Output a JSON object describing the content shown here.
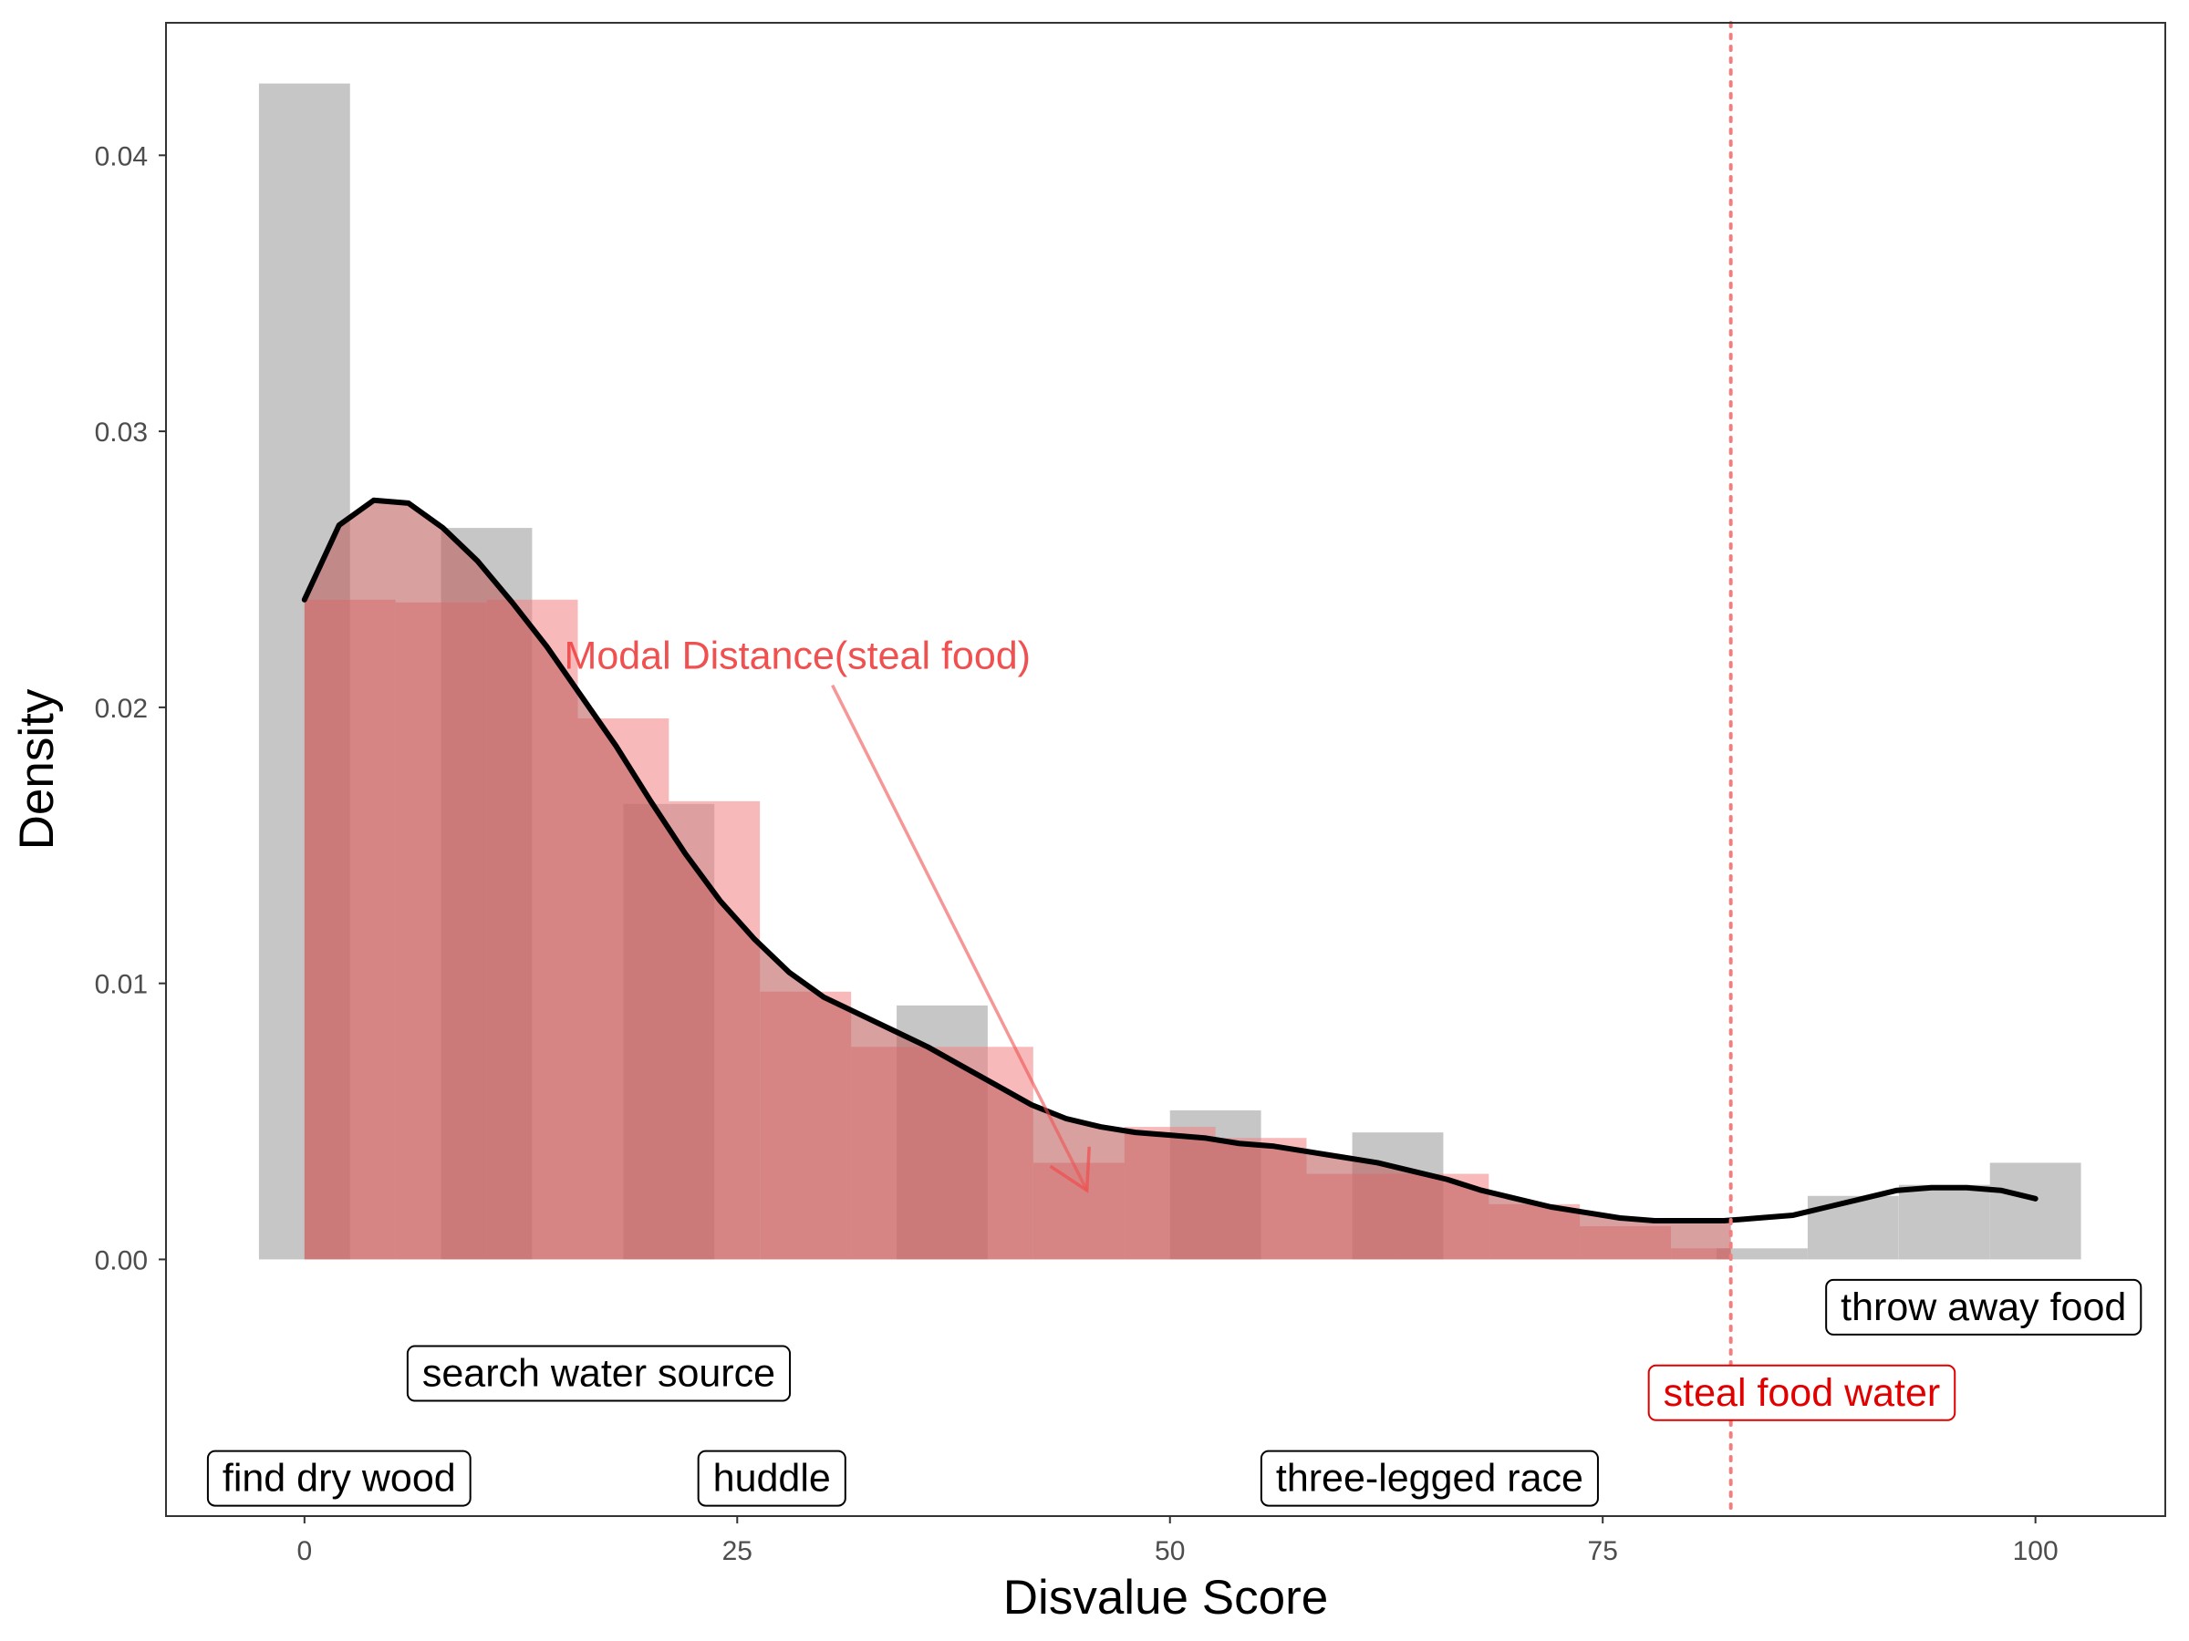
{
  "chart_data": {
    "type": "bar",
    "xlabel": "Disvalue Score",
    "ylabel": "Density",
    "xlim": [
      -8,
      107.5
    ],
    "ylim": [
      -0.0093,
      0.0448
    ],
    "grid": false,
    "x_ticks": [
      0,
      25,
      50,
      75,
      100
    ],
    "y_ticks": [
      0.0,
      0.01,
      0.02,
      0.03,
      0.04
    ],
    "x_tick_labels": [
      "0",
      "25",
      "50",
      "75",
      "100"
    ],
    "y_tick_labels": [
      "0.00",
      "0.01",
      "0.02",
      "0.03",
      "0.04"
    ],
    "gray_histogram": {
      "bin_width": 5.26,
      "color": "#c6c6c6",
      "bins": [
        {
          "x0": -2.63,
          "density": 0.0426
        },
        {
          "x0": 2.63,
          "density": 0.0
        },
        {
          "x0": 7.89,
          "density": 0.0265
        },
        {
          "x0": 13.16,
          "density": 0.0
        },
        {
          "x0": 18.42,
          "density": 0.0165
        },
        {
          "x0": 23.68,
          "density": 0.0
        },
        {
          "x0": 28.95,
          "density": 0.0
        },
        {
          "x0": 34.21,
          "density": 0.0092
        },
        {
          "x0": 39.47,
          "density": 0.0
        },
        {
          "x0": 44.74,
          "density": 0.0
        },
        {
          "x0": 50.0,
          "density": 0.0054
        },
        {
          "x0": 55.26,
          "density": 0.0
        },
        {
          "x0": 60.53,
          "density": 0.0046
        },
        {
          "x0": 65.79,
          "density": 0.0
        },
        {
          "x0": 71.05,
          "density": 0.0
        },
        {
          "x0": 76.32,
          "density": 0.0
        },
        {
          "x0": 81.58,
          "density": 0.0004
        },
        {
          "x0": 86.84,
          "density": 0.0023
        },
        {
          "x0": 92.11,
          "density": 0.0027
        },
        {
          "x0": 97.37,
          "density": 0.0035
        }
      ]
    },
    "red_histogram": {
      "bin_width": 5.26,
      "x_max": 82.4,
      "color": "#f08080",
      "bins": [
        {
          "x0": 0.0,
          "density": 0.0239
        },
        {
          "x0": 5.26,
          "density": 0.0238
        },
        {
          "x0": 10.53,
          "density": 0.0239
        },
        {
          "x0": 15.79,
          "density": 0.0196
        },
        {
          "x0": 21.05,
          "density": 0.0166
        },
        {
          "x0": 26.32,
          "density": 0.0097
        },
        {
          "x0": 31.58,
          "density": 0.0077
        },
        {
          "x0": 36.84,
          "density": 0.0077
        },
        {
          "x0": 42.11,
          "density": 0.0035
        },
        {
          "x0": 47.37,
          "density": 0.0048
        },
        {
          "x0": 52.63,
          "density": 0.0044
        },
        {
          "x0": 57.89,
          "density": 0.0031
        },
        {
          "x0": 63.16,
          "density": 0.0031
        },
        {
          "x0": 68.42,
          "density": 0.002
        },
        {
          "x0": 73.68,
          "density": 0.0012
        },
        {
          "x0": 78.95,
          "density": 0.0004
        }
      ]
    },
    "density_curve": {
      "color": "#000000",
      "shaded_fill": "#c06060",
      "shaded_until": 82.4,
      "points": [
        [
          0,
          0.0239
        ],
        [
          2,
          0.0266
        ],
        [
          4,
          0.0275
        ],
        [
          6,
          0.0274
        ],
        [
          8,
          0.0265
        ],
        [
          10,
          0.0253
        ],
        [
          12,
          0.0238
        ],
        [
          14,
          0.0222
        ],
        [
          16,
          0.0204
        ],
        [
          18,
          0.0186
        ],
        [
          20,
          0.0166
        ],
        [
          22,
          0.0147
        ],
        [
          24,
          0.013
        ],
        [
          26,
          0.0116
        ],
        [
          28,
          0.0104
        ],
        [
          30,
          0.0095
        ],
        [
          32,
          0.0089
        ],
        [
          34,
          0.0083
        ],
        [
          36,
          0.0077
        ],
        [
          38,
          0.007
        ],
        [
          40,
          0.0063
        ],
        [
          42,
          0.0056
        ],
        [
          44,
          0.0051
        ],
        [
          46,
          0.0048
        ],
        [
          48,
          0.0046
        ],
        [
          50,
          0.0045
        ],
        [
          52,
          0.0044
        ],
        [
          54,
          0.0042
        ],
        [
          56,
          0.0041
        ],
        [
          58,
          0.0039
        ],
        [
          60,
          0.0037
        ],
        [
          62,
          0.0035
        ],
        [
          64,
          0.0032
        ],
        [
          66,
          0.0029
        ],
        [
          68,
          0.0025
        ],
        [
          70,
          0.0022
        ],
        [
          72,
          0.0019
        ],
        [
          74,
          0.0017
        ],
        [
          76,
          0.0015
        ],
        [
          78,
          0.0014
        ],
        [
          80,
          0.0014
        ],
        [
          82,
          0.0014
        ],
        [
          84,
          0.0015
        ],
        [
          86,
          0.0016
        ],
        [
          88,
          0.0019
        ],
        [
          90,
          0.0022
        ],
        [
          92,
          0.0025
        ],
        [
          94,
          0.0026
        ],
        [
          96,
          0.0026
        ],
        [
          98,
          0.0025
        ],
        [
          100,
          0.0022
        ]
      ]
    },
    "reference_line": {
      "x": 82.4,
      "color": "#f08080",
      "style": "dotted"
    },
    "arrow_annotation": {
      "text": "Modal Distance(steal food)",
      "text_x": 15,
      "text_y": 0.0219,
      "from": [
        30.5,
        0.0208
      ],
      "to": [
        45.2,
        0.0025
      ],
      "color": "#f05050"
    },
    "labels": [
      {
        "text": "search water source",
        "x": 17,
        "y": -0.0041,
        "color": "#000000"
      },
      {
        "text": "find dry wood",
        "x": 2,
        "y": -0.0079,
        "color": "#000000"
      },
      {
        "text": "huddle",
        "x": 27,
        "y": -0.0079,
        "color": "#000000"
      },
      {
        "text": "three-legged race",
        "x": 65,
        "y": -0.0079,
        "color": "#000000"
      },
      {
        "text": "throw away food",
        "x": 97,
        "y": -0.0017,
        "color": "#000000"
      },
      {
        "text": "steal food water",
        "x": 86.5,
        "y": -0.0048,
        "color": "#e00000"
      }
    ]
  }
}
